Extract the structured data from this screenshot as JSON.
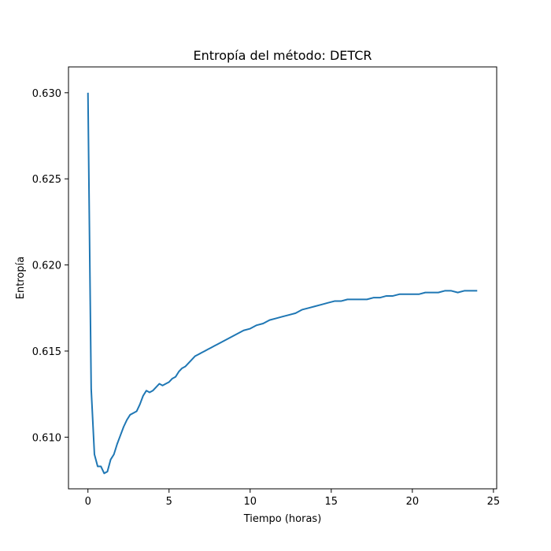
{
  "chart_data": {
    "type": "line",
    "title": "Entropía del método: DETCR",
    "xlabel": "Tiempo (horas)",
    "ylabel": "Entropía",
    "xlim": [
      -1.2,
      25.2
    ],
    "ylim": [
      0.607,
      0.6315
    ],
    "xticks": [
      0,
      5,
      10,
      15,
      20,
      25
    ],
    "yticks": [
      0.61,
      0.615,
      0.62,
      0.625,
      0.63
    ],
    "xtick_labels": [
      "0",
      "5",
      "10",
      "15",
      "20",
      "25"
    ],
    "ytick_labels": [
      "0.610",
      "0.615",
      "0.620",
      "0.625",
      "0.630"
    ],
    "grid": false,
    "series": [
      {
        "color": "#1f77b4",
        "x": [
          0,
          0.2,
          0.4,
          0.6,
          0.8,
          1.0,
          1.2,
          1.4,
          1.6,
          1.8,
          2.0,
          2.2,
          2.4,
          2.6,
          2.8,
          3.0,
          3.2,
          3.4,
          3.6,
          3.8,
          4.0,
          4.2,
          4.4,
          4.6,
          4.8,
          5.0,
          5.2,
          5.4,
          5.6,
          5.8,
          6.0,
          6.2,
          6.4,
          6.6,
          6.8,
          7.0,
          7.2,
          7.4,
          7.6,
          7.8,
          8.0,
          8.4,
          8.8,
          9.2,
          9.6,
          10.0,
          10.4,
          10.8,
          11.2,
          11.6,
          12.0,
          12.4,
          12.8,
          13.2,
          13.6,
          14.0,
          14.4,
          14.8,
          15.2,
          15.6,
          16.0,
          16.4,
          16.8,
          17.2,
          17.6,
          18.0,
          18.4,
          18.8,
          19.2,
          19.6,
          20.0,
          20.4,
          20.8,
          21.2,
          21.6,
          22.0,
          22.4,
          22.8,
          23.2,
          23.6,
          24.0
        ],
        "values": [
          0.63,
          0.6128,
          0.609,
          0.6083,
          0.6083,
          0.6079,
          0.608,
          0.6087,
          0.609,
          0.6096,
          0.6101,
          0.6106,
          0.611,
          0.6113,
          0.6114,
          0.6115,
          0.6119,
          0.6124,
          0.6127,
          0.6126,
          0.6127,
          0.6129,
          0.6131,
          0.613,
          0.6131,
          0.6132,
          0.6134,
          0.6135,
          0.6138,
          0.614,
          0.6141,
          0.6143,
          0.6145,
          0.6147,
          0.6148,
          0.6149,
          0.615,
          0.6151,
          0.6152,
          0.6153,
          0.6154,
          0.6156,
          0.6158,
          0.616,
          0.6162,
          0.6163,
          0.6165,
          0.6166,
          0.6168,
          0.6169,
          0.617,
          0.6171,
          0.6172,
          0.6174,
          0.6175,
          0.6176,
          0.6177,
          0.6178,
          0.6179,
          0.6179,
          0.618,
          0.618,
          0.618,
          0.618,
          0.6181,
          0.6181,
          0.6182,
          0.6182,
          0.6183,
          0.6183,
          0.6183,
          0.6183,
          0.6184,
          0.6184,
          0.6184,
          0.6185,
          0.6185,
          0.6184,
          0.6185,
          0.6185,
          0.6185
        ]
      }
    ]
  }
}
